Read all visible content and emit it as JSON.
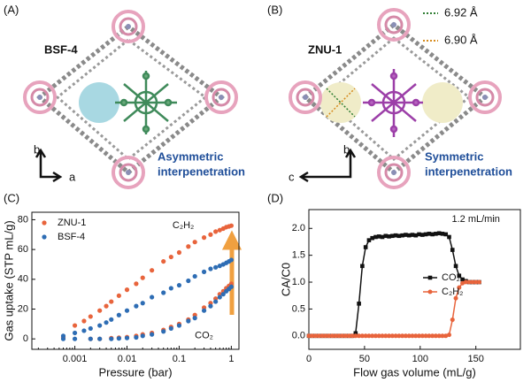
{
  "panels": [
    {
      "label": "(A)",
      "name": "BSF-4",
      "caption": [
        "Asymmetric",
        "interpenetration"
      ],
      "axes": [
        "b",
        "a"
      ]
    },
    {
      "label": "(B)",
      "name": "ZNU-1",
      "caption": [
        "Symmetric",
        "interpenetration"
      ],
      "axes": [
        "b",
        "c"
      ],
      "distances": [
        {
          "text": "6.92 Å",
          "color": "#2e7d32"
        },
        {
          "text": "6.90 Å",
          "color": "#d68a1c"
        }
      ]
    }
  ],
  "chart_data": [
    {
      "type": "scatter",
      "panel": "(C)",
      "xlabel": "Pressure (bar)",
      "ylabel": "Gas uptake (STP mL/g)",
      "xlog": true,
      "xlim": [
        0.00015,
        1.4
      ],
      "xticks": [
        0.001,
        0.01,
        0.1,
        1
      ],
      "ylim": [
        -7,
        85
      ],
      "yticks": [
        0,
        20,
        40,
        60,
        80
      ],
      "legend": "upper left",
      "annotations": [
        {
          "text": "C₂H₂",
          "x": 0.12,
          "y": 76
        },
        {
          "text": "CO₂",
          "x": 0.3,
          "y": 2
        }
      ],
      "series": [
        {
          "name": "ZNU-1",
          "color": "#e8643c",
          "x": [
            0.0006,
            0.001,
            0.0015,
            0.002,
            0.003,
            0.004,
            0.005,
            0.007,
            0.01,
            0.015,
            0.02,
            0.03,
            0.05,
            0.07,
            0.1,
            0.15,
            0.2,
            0.3,
            0.4,
            0.5,
            0.6,
            0.7,
            0.8,
            0.9,
            1.0
          ],
          "values": [
            1,
            9,
            12,
            15,
            19,
            22,
            25,
            29,
            33,
            37,
            41,
            46,
            52,
            55,
            58,
            62,
            65,
            68,
            70,
            72,
            73,
            74,
            75,
            75.5,
            76
          ]
        },
        {
          "name": "BSF-4",
          "color": "#2e6db4",
          "x": [
            0.0006,
            0.001,
            0.0015,
            0.002,
            0.003,
            0.004,
            0.005,
            0.007,
            0.01,
            0.015,
            0.02,
            0.03,
            0.05,
            0.07,
            0.1,
            0.15,
            0.2,
            0.3,
            0.4,
            0.5,
            0.6,
            0.7,
            0.8,
            0.9,
            1.0
          ],
          "values": [
            2,
            4,
            5.5,
            7,
            9,
            11,
            13,
            16,
            19,
            22,
            24,
            28,
            31,
            34,
            36,
            39,
            42,
            45,
            47,
            48,
            49,
            50,
            51,
            52,
            53
          ]
        },
        {
          "color": "#e8643c",
          "x": [
            0.002,
            0.003,
            0.005,
            0.007,
            0.01,
            0.015,
            0.02,
            0.03,
            0.05,
            0.07,
            0.1,
            0.15,
            0.2,
            0.3,
            0.4,
            0.5,
            0.6,
            0.7,
            0.8,
            0.9,
            1.0
          ],
          "values": [
            0,
            0,
            0.5,
            0.8,
            1.2,
            2,
            3,
            4,
            6,
            8,
            10,
            13,
            16,
            21,
            24,
            27,
            30,
            32,
            34,
            35.5,
            37
          ]
        },
        {
          "color": "#2e6db4",
          "x": [
            0.0006,
            0.001,
            0.002,
            0.003,
            0.005,
            0.007,
            0.01,
            0.015,
            0.02,
            0.03,
            0.05,
            0.07,
            0.1,
            0.15,
            0.2,
            0.3,
            0.4,
            0.5,
            0.6,
            0.7,
            0.8,
            0.9,
            1.0
          ],
          "values": [
            0,
            0,
            0,
            0,
            0,
            0.3,
            0.6,
            1,
            2,
            3,
            5,
            7,
            9,
            12,
            14,
            19,
            22,
            25,
            28,
            30,
            32,
            33.5,
            35
          ]
        }
      ]
    },
    {
      "type": "line",
      "panel": "(D)",
      "xlabel": "Flow gas volume (mL/g)",
      "ylabel": "CA/C0",
      "xlim": [
        0,
        190
      ],
      "xticks": [
        0,
        50,
        100,
        150
      ],
      "ylim": [
        -0.25,
        2.35
      ],
      "yticks": [
        {
          "value": 0,
          "label": "0.0"
        },
        {
          "value": 0.5,
          "label": "0.5"
        },
        {
          "value": 1,
          "label": "1.0"
        },
        {
          "value": 1.5,
          "label": "1.5"
        },
        {
          "value": 2,
          "label": "2.0"
        }
      ],
      "legend": "center right",
      "annotations": [
        {
          "text": "1.2 mL/min",
          "x": 150,
          "y": 2.17
        }
      ],
      "x": [
        0,
        3,
        6,
        9,
        12,
        15,
        18,
        21,
        24,
        27,
        30,
        33,
        36,
        39,
        42,
        45,
        48,
        51,
        54,
        57,
        60,
        63,
        66,
        69,
        72,
        75,
        78,
        81,
        84,
        87,
        90,
        93,
        96,
        99,
        102,
        105,
        108,
        111,
        114,
        117,
        120,
        123,
        126,
        129,
        132,
        135,
        138,
        141,
        144,
        147,
        150,
        153
      ],
      "series": [
        {
          "name": "CO₂",
          "color": "#111111",
          "marker": "square",
          "values": [
            0,
            0,
            0,
            0,
            0,
            0,
            0,
            0,
            0,
            0,
            0,
            0,
            0,
            0,
            0.05,
            0.6,
            1.3,
            1.65,
            1.78,
            1.82,
            1.84,
            1.85,
            1.84,
            1.86,
            1.85,
            1.86,
            1.87,
            1.86,
            1.87,
            1.88,
            1.87,
            1.88,
            1.87,
            1.89,
            1.88,
            1.89,
            1.9,
            1.89,
            1.9,
            1.91,
            1.9,
            1.89,
            1.84,
            1.6,
            1.3,
            1.12,
            1.05,
            1.02,
            1.0,
            1.0,
            1.0,
            1.0
          ]
        },
        {
          "name": "C₂H₂",
          "color": "#e8643c",
          "marker": "circle",
          "values": [
            0,
            0,
            0,
            0,
            0,
            0,
            0,
            0,
            0,
            0,
            0,
            0,
            0,
            0,
            0,
            0,
            0,
            0,
            0,
            0,
            0,
            0,
            0,
            0,
            0,
            0,
            0,
            0,
            0,
            0,
            0,
            0,
            0,
            0,
            0,
            0,
            0,
            0,
            0,
            0,
            0,
            0,
            0.02,
            0.3,
            0.7,
            0.9,
            0.98,
            1,
            1,
            1,
            1,
            1
          ]
        }
      ]
    }
  ]
}
